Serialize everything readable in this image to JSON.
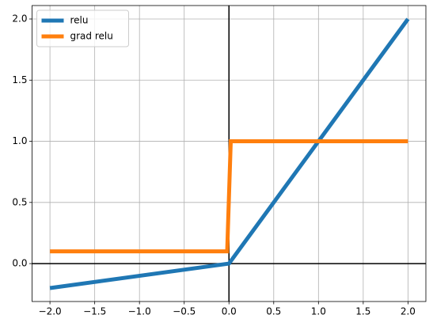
{
  "chart_data": {
    "type": "line",
    "series": [
      {
        "name": "relu",
        "color": "#1f77b4",
        "x": [
          -2,
          0,
          2
        ],
        "values": [
          -0.2,
          0,
          2
        ]
      },
      {
        "name": "grad relu",
        "color": "#ff7f0e",
        "x": [
          -2,
          -0.02,
          0.02,
          2
        ],
        "values": [
          0.1,
          0.1,
          1,
          1
        ]
      }
    ],
    "xlim": [
      -2.2,
      2.2
    ],
    "ylim": [
      -0.31,
      2.11
    ],
    "xticks": [
      {
        "value": -2,
        "label": "−2.0"
      },
      {
        "value": -1.5,
        "label": "−1.5"
      },
      {
        "value": -1,
        "label": "−1.0"
      },
      {
        "value": -0.5,
        "label": "−0.5"
      },
      {
        "value": 0,
        "label": "0.0"
      },
      0.5,
      {
        "value": 1,
        "label": "1.0"
      },
      1.5,
      {
        "value": 2,
        "label": "2.0"
      }
    ],
    "yticks": [
      {
        "value": 0,
        "label": "0.0"
      },
      0.5,
      {
        "value": 1,
        "label": "1.0"
      },
      1.5,
      {
        "value": 2,
        "label": "2.0"
      }
    ],
    "axhline": 0,
    "axvline": 0,
    "grid": true,
    "legend": "upper left"
  }
}
